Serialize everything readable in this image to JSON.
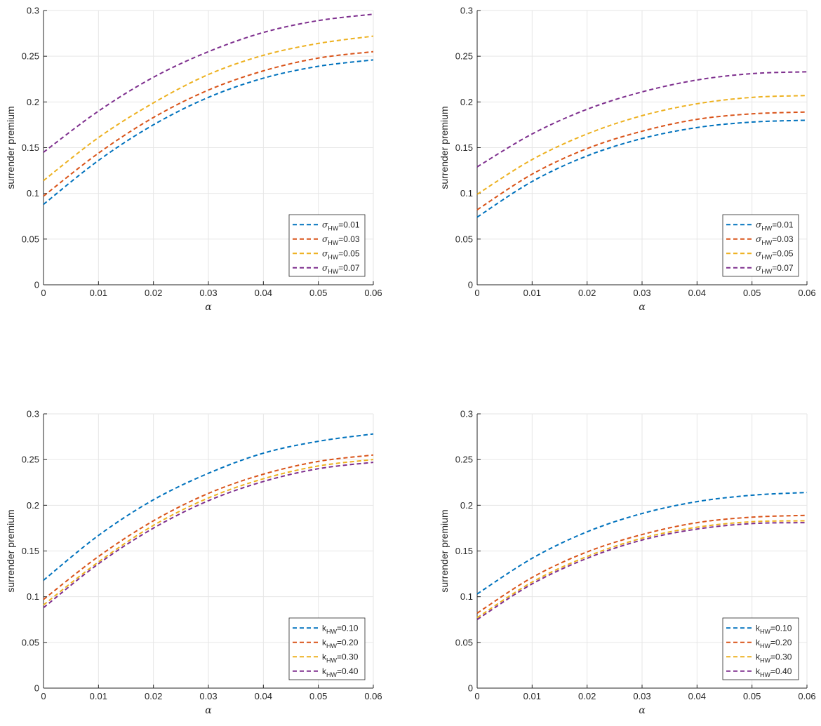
{
  "colors": {
    "series": [
      "#0072BD",
      "#D95319",
      "#EDB120",
      "#7E2F8E"
    ],
    "grid": "#e6e6e6",
    "axis": "#262626"
  },
  "chart_data": [
    {
      "type": "line",
      "xlabel": "α",
      "ylabel": "surrender premium",
      "xlim": [
        0,
        0.06
      ],
      "ylim": [
        0,
        0.3
      ],
      "xticks": [
        "0",
        "0.01",
        "0.02",
        "0.03",
        "0.04",
        "0.05",
        "0.06"
      ],
      "yticks": [
        "0",
        "0.05",
        "0.1",
        "0.15",
        "0.2",
        "0.25",
        "0.3"
      ],
      "grid": true,
      "line_style": "dashed",
      "legend_position": "bottom-right",
      "x": [
        0,
        0.01,
        0.02,
        0.03,
        0.04,
        0.05,
        0.06
      ],
      "series": [
        {
          "symbol": "σ",
          "sub": "HW",
          "value": "=0.01",
          "values": [
            0.088,
            0.136,
            0.175,
            0.205,
            0.226,
            0.239,
            0.246
          ]
        },
        {
          "symbol": "σ",
          "sub": "HW",
          "value": "=0.03",
          "values": [
            0.097,
            0.144,
            0.183,
            0.213,
            0.234,
            0.248,
            0.255
          ]
        },
        {
          "symbol": "σ",
          "sub": "HW",
          "value": "=0.05",
          "values": [
            0.114,
            0.161,
            0.199,
            0.23,
            0.251,
            0.264,
            0.272
          ]
        },
        {
          "symbol": "σ",
          "sub": "HW",
          "value": "=0.07",
          "values": [
            0.145,
            0.19,
            0.227,
            0.255,
            0.276,
            0.289,
            0.296
          ]
        }
      ]
    },
    {
      "type": "line",
      "xlabel": "α",
      "ylabel": "surrender premium",
      "xlim": [
        0,
        0.06
      ],
      "ylim": [
        0,
        0.3
      ],
      "xticks": [
        "0",
        "0.01",
        "0.02",
        "0.03",
        "0.04",
        "0.05",
        "0.06"
      ],
      "yticks": [
        "0",
        "0.05",
        "0.1",
        "0.15",
        "0.2",
        "0.25",
        "0.3"
      ],
      "grid": true,
      "line_style": "dashed",
      "legend_position": "bottom-right",
      "x": [
        0,
        0.01,
        0.02,
        0.03,
        0.04,
        0.05,
        0.06
      ],
      "series": [
        {
          "symbol": "σ",
          "sub": "HW",
          "value": "=0.01",
          "values": [
            0.074,
            0.113,
            0.141,
            0.16,
            0.172,
            0.178,
            0.18
          ]
        },
        {
          "symbol": "σ",
          "sub": "HW",
          "value": "=0.03",
          "values": [
            0.082,
            0.121,
            0.149,
            0.168,
            0.181,
            0.187,
            0.189
          ]
        },
        {
          "symbol": "σ",
          "sub": "HW",
          "value": "=0.05",
          "values": [
            0.099,
            0.137,
            0.165,
            0.185,
            0.198,
            0.205,
            0.207
          ]
        },
        {
          "symbol": "σ",
          "sub": "HW",
          "value": "=0.07",
          "values": [
            0.129,
            0.165,
            0.192,
            0.211,
            0.224,
            0.231,
            0.233
          ]
        }
      ]
    },
    {
      "type": "line",
      "xlabel": "α",
      "ylabel": "surrender premium",
      "xlim": [
        0,
        0.06
      ],
      "ylim": [
        0,
        0.3
      ],
      "xticks": [
        "0",
        "0.01",
        "0.02",
        "0.03",
        "0.04",
        "0.05",
        "0.06"
      ],
      "yticks": [
        "0",
        "0.05",
        "0.1",
        "0.15",
        "0.2",
        "0.25",
        "0.3"
      ],
      "grid": true,
      "line_style": "dashed",
      "legend_position": "bottom-right",
      "x": [
        0,
        0.01,
        0.02,
        0.03,
        0.04,
        0.05,
        0.06
      ],
      "series": [
        {
          "symbol": "k",
          "sub": "HW",
          "value": "=0.10",
          "values": [
            0.118,
            0.167,
            0.206,
            0.235,
            0.257,
            0.27,
            0.278
          ]
        },
        {
          "symbol": "k",
          "sub": "HW",
          "value": "=0.20",
          "values": [
            0.097,
            0.144,
            0.183,
            0.213,
            0.234,
            0.248,
            0.255
          ]
        },
        {
          "symbol": "k",
          "sub": "HW",
          "value": "=0.30",
          "values": [
            0.091,
            0.138,
            0.178,
            0.208,
            0.229,
            0.243,
            0.25
          ]
        },
        {
          "symbol": "k",
          "sub": "HW",
          "value": "=0.40",
          "values": [
            0.088,
            0.136,
            0.175,
            0.205,
            0.226,
            0.24,
            0.247
          ]
        }
      ]
    },
    {
      "type": "line",
      "xlabel": "α",
      "ylabel": "surrender premium",
      "xlim": [
        0,
        0.06
      ],
      "ylim": [
        0,
        0.3
      ],
      "xticks": [
        "0",
        "0.01",
        "0.02",
        "0.03",
        "0.04",
        "0.05",
        "0.06"
      ],
      "yticks": [
        "0",
        "0.05",
        "0.1",
        "0.15",
        "0.2",
        "0.25",
        "0.3"
      ],
      "grid": true,
      "line_style": "dashed",
      "legend_position": "bottom-right",
      "x": [
        0,
        0.01,
        0.02,
        0.03,
        0.04,
        0.05,
        0.06
      ],
      "series": [
        {
          "symbol": "k",
          "sub": "HW",
          "value": "=0.10",
          "values": [
            0.103,
            0.142,
            0.171,
            0.191,
            0.204,
            0.211,
            0.214
          ]
        },
        {
          "symbol": "k",
          "sub": "HW",
          "value": "=0.20",
          "values": [
            0.082,
            0.121,
            0.149,
            0.168,
            0.181,
            0.187,
            0.189
          ]
        },
        {
          "symbol": "k",
          "sub": "HW",
          "value": "=0.30",
          "values": [
            0.077,
            0.116,
            0.144,
            0.164,
            0.176,
            0.182,
            0.183
          ]
        },
        {
          "symbol": "k",
          "sub": "HW",
          "value": "=0.40",
          "values": [
            0.075,
            0.114,
            0.142,
            0.162,
            0.174,
            0.18,
            0.181
          ]
        }
      ]
    }
  ]
}
